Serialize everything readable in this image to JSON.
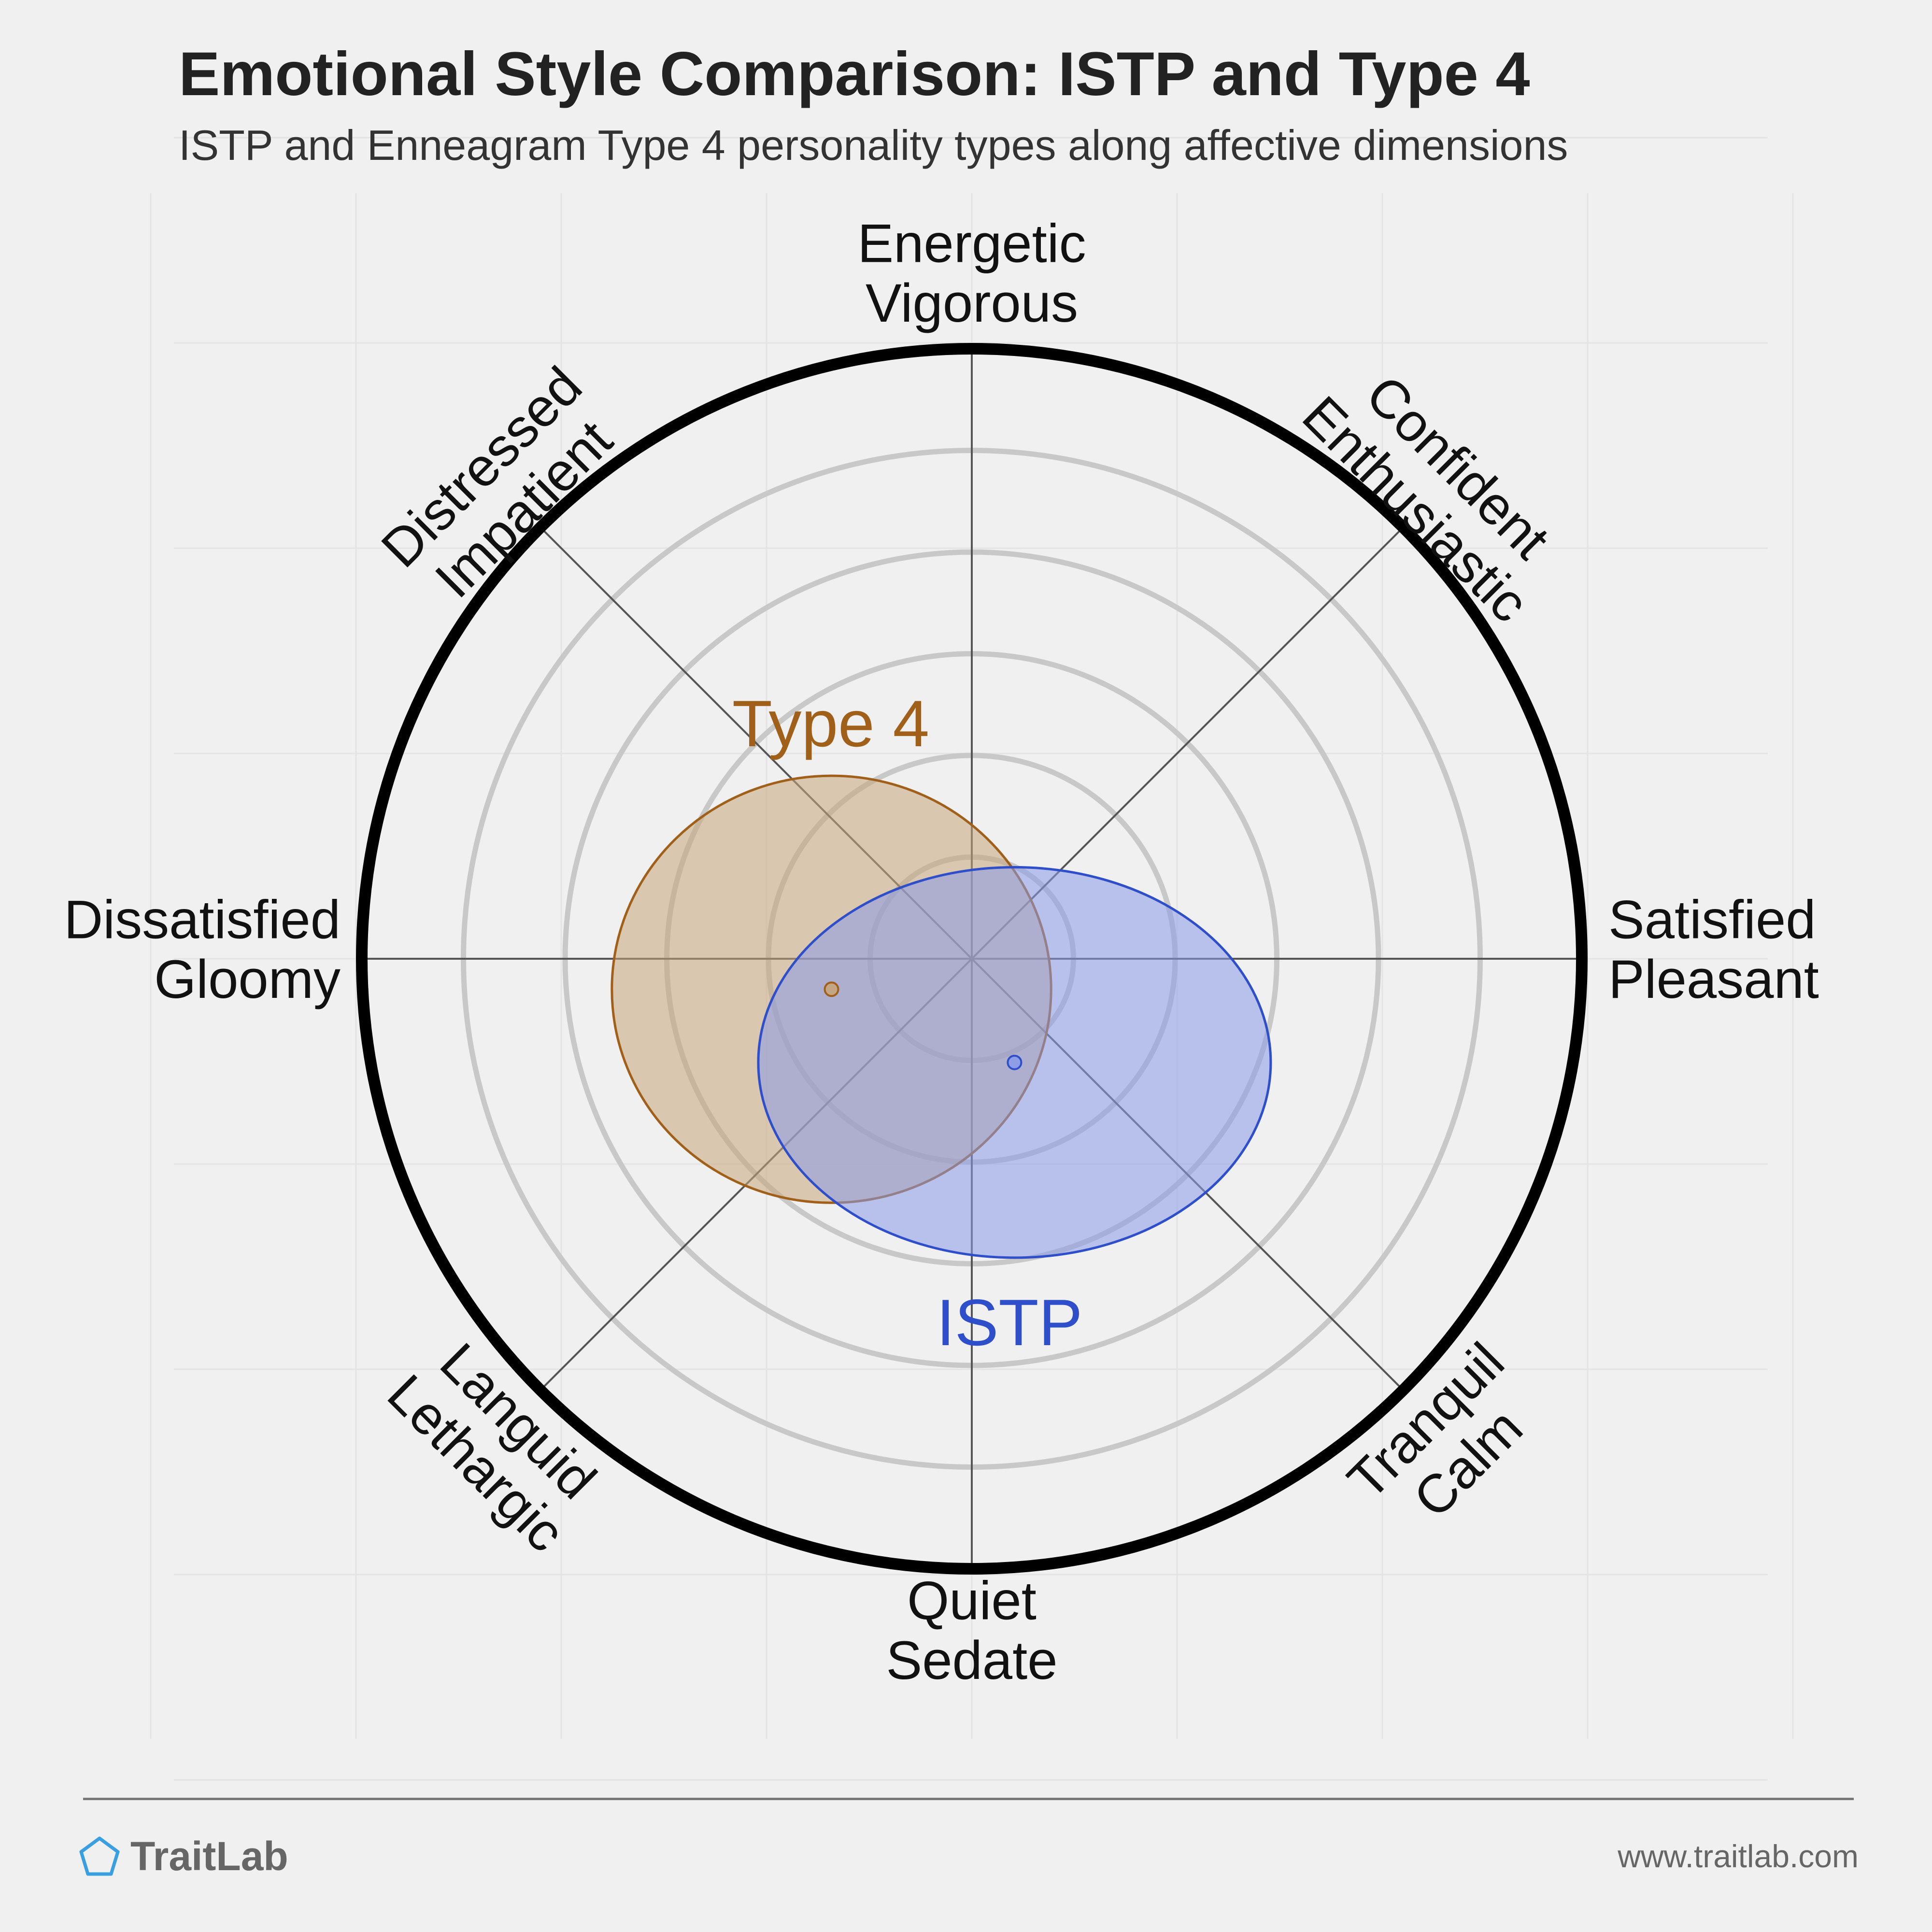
{
  "header": {
    "title": "Emotional Style Comparison: ISTP and Type 4",
    "subtitle": "ISTP and Enneagram Type 4 personality types along affective dimensions"
  },
  "footer": {
    "brand": "TraitLab",
    "url": "www.traitlab.com",
    "logo_icon": "pentagon-icon"
  },
  "chart_data": {
    "type": "scatter",
    "coordinate_system": "circumplex",
    "grid": true,
    "xlim": [
      -1,
      1
    ],
    "ylim": [
      -1,
      1
    ],
    "axes": [
      {
        "id": "energetic",
        "lines": [
          "Energetic",
          "Vigorous"
        ],
        "angle_deg": 90
      },
      {
        "id": "confident",
        "lines": [
          "Confident",
          "Enthusiastic"
        ],
        "angle_deg": 45
      },
      {
        "id": "satisfied",
        "lines": [
          "Satisfied",
          "Pleasant"
        ],
        "angle_deg": 0
      },
      {
        "id": "tranquil",
        "lines": [
          "Tranquil",
          "Calm"
        ],
        "angle_deg": -45
      },
      {
        "id": "quiet",
        "lines": [
          "Quiet",
          "Sedate"
        ],
        "angle_deg": -90
      },
      {
        "id": "languid",
        "lines": [
          "Languid",
          "Lethargic"
        ],
        "angle_deg": -135
      },
      {
        "id": "dissatisfied",
        "lines": [
          "Dissatisfied",
          "Gloomy"
        ],
        "angle_deg": 180
      },
      {
        "id": "distressed",
        "lines": [
          "Distressed",
          "Impatient"
        ],
        "angle_deg": 135
      }
    ],
    "series": [
      {
        "name": "Type 4",
        "center": [
          -0.23,
          -0.05
        ],
        "radii": [
          0.36,
          0.35
        ],
        "color": "#a0601a",
        "fill": "#c8a57c"
      },
      {
        "name": "ISTP",
        "center": [
          0.07,
          -0.17
        ],
        "radii": [
          0.42,
          0.32
        ],
        "color": "#2e4fc9",
        "fill": "#8b9be8"
      }
    ]
  }
}
